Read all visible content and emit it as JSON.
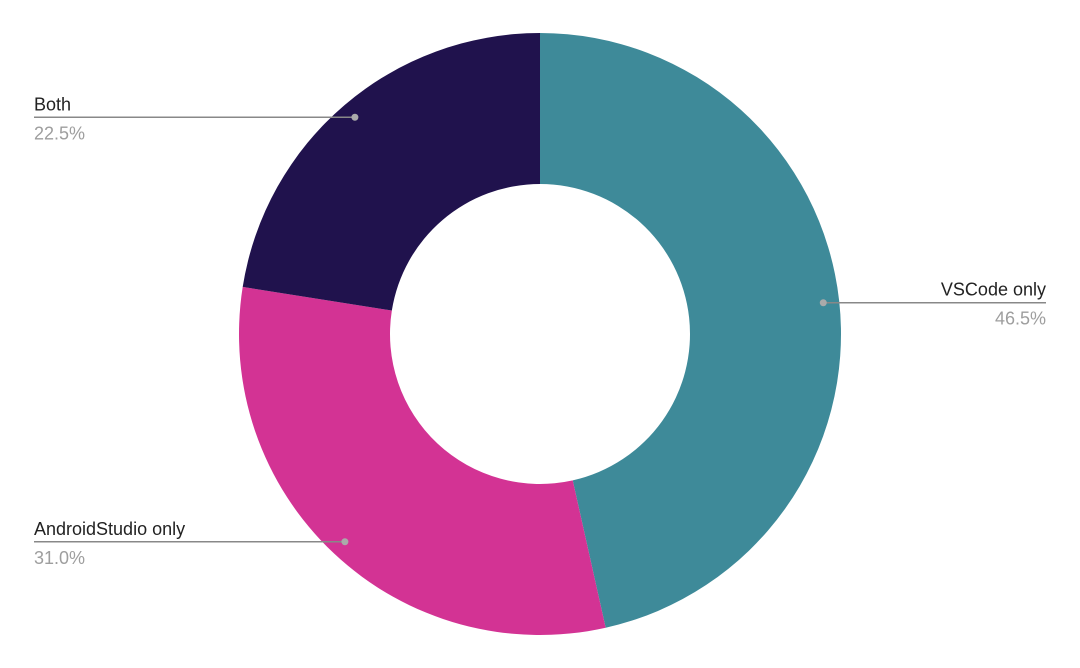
{
  "chart_data": {
    "type": "donut",
    "categories": [
      "VSCode only",
      "AndroidStudio only",
      "Both"
    ],
    "values": [
      46.5,
      31.0,
      22.5
    ],
    "value_labels": [
      "46.5%",
      "31.0%",
      "22.5%"
    ],
    "colors": [
      "#3e8a99",
      "#d33394",
      "#20124d"
    ]
  }
}
